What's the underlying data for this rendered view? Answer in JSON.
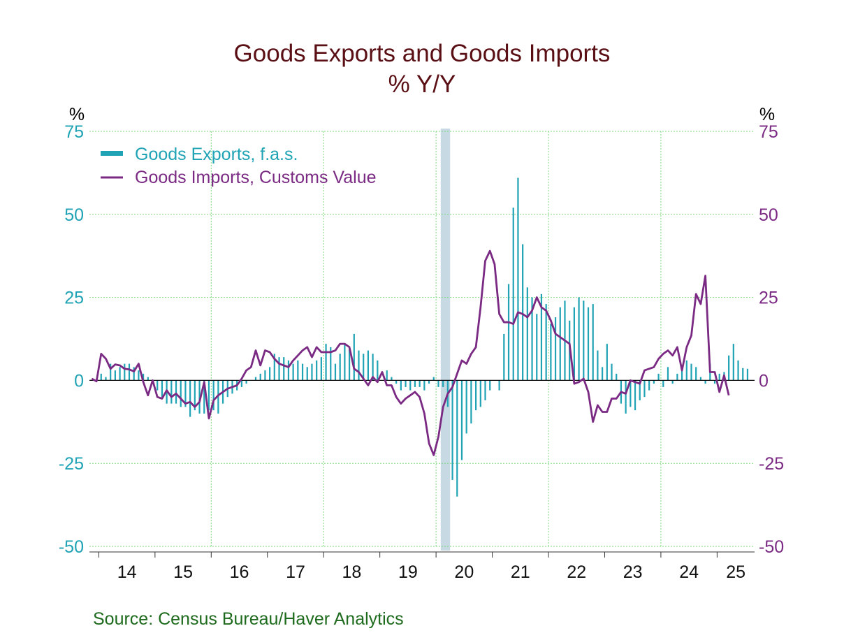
{
  "chart_data": {
    "type": "bar+line",
    "title": "Goods Exports and Goods Imports",
    "subtitle": "% Y/Y",
    "left_unit": "%",
    "right_unit": "%",
    "ylim": [
      -50,
      75
    ],
    "yticks": [
      "75",
      "50",
      "25",
      "0",
      "-25",
      "-50"
    ],
    "x_start": "2013-11",
    "x_end": "2025-08",
    "year_labels": [
      "14",
      "15",
      "16",
      "17",
      "18",
      "19",
      "20",
      "21",
      "22",
      "23",
      "24",
      "25"
    ],
    "recession": {
      "start": "2020-02",
      "end": "2020-04"
    },
    "grid": true,
    "legend_position": "top-left",
    "source": "Source:  Census Bureau/Haver Analytics",
    "colors": {
      "exports": "#1fa3b5",
      "imports": "#7b2a84",
      "title": "#5a0f14",
      "grid": "#7ed87e",
      "recession": "#c7d9e2",
      "source": "#1e6b1e"
    },
    "series": [
      {
        "name": "Goods Exports, f.a.s.",
        "kind": "bar",
        "start": "2014-01",
        "values": [
          2.0,
          1.0,
          5.0,
          3.0,
          4.0,
          5.0,
          5.0,
          4.0,
          3.0,
          2.0,
          1.0,
          0.0,
          -3.0,
          -5.0,
          -7.0,
          -7.0,
          -7.0,
          -8.0,
          -8.0,
          -11.0,
          -9.0,
          -10.0,
          -10.0,
          -9.0,
          -9.0,
          -10.0,
          -7.0,
          -5.0,
          -4.0,
          -3.0,
          -2.0,
          -1.0,
          0.0,
          1.0,
          2.0,
          3.0,
          4.0,
          8.0,
          7.0,
          7.0,
          6.0,
          5.0,
          6.0,
          5.0,
          4.0,
          5.0,
          6.0,
          7.0,
          11.0,
          10.0,
          5.0,
          8.0,
          11.0,
          10.0,
          14.0,
          9.0,
          8.0,
          9.0,
          8.0,
          6.0,
          0.0,
          3.0,
          1.0,
          -1.0,
          -3.0,
          -2.0,
          -3.0,
          -2.0,
          -2.0,
          -3.0,
          -1.0,
          1.0,
          -2.0,
          -2.0,
          -8.0,
          -30.0,
          -35.0,
          -24.0,
          -16.0,
          -13.0,
          -9.0,
          -8.0,
          -6.0,
          -3.0,
          0.0,
          -3.0,
          14.0,
          29.0,
          52.0,
          61.0,
          41.0,
          28.0,
          25.0,
          20.0,
          26.0,
          23.0,
          17.0,
          19.0,
          22.0,
          24.0,
          18.0,
          22.0,
          25.0,
          24.0,
          22.0,
          23.0,
          9.0,
          4.0,
          11.0,
          5.0,
          2.0,
          -7.0,
          -10.0,
          -8.0,
          -9.0,
          -6.0,
          -5.0,
          -3.0,
          -1.0,
          2.0,
          -2.0,
          4.0,
          -1.0,
          2.0,
          4.0,
          6.0,
          5.0,
          4.0,
          1.0,
          -1.0,
          5.0,
          -1.0,
          2.0,
          2.5,
          7.5,
          11.0,
          6.0,
          3.7,
          3.5
        ]
      },
      {
        "name": "Goods Imports, Customs Value",
        "kind": "line",
        "start": "2013-11",
        "values": [
          0.5,
          -0.3,
          8.0,
          6.5,
          3.5,
          4.8,
          4.5,
          3.5,
          3.3,
          2.7,
          5.0,
          -0.5,
          -4.5,
          0.0,
          -5.0,
          -5.5,
          -3.0,
          -5.0,
          -4.0,
          -5.5,
          -7.0,
          -6.5,
          -8.0,
          -6.5,
          -0.5,
          -11.5,
          -6.0,
          -4.5,
          -3.5,
          -2.5,
          -2.0,
          -1.5,
          0.5,
          3.0,
          4.0,
          9.0,
          4.5,
          9.0,
          8.5,
          6.5,
          5.0,
          4.5,
          4.0,
          6.0,
          7.5,
          9.0,
          10.0,
          7.0,
          10.0,
          8.5,
          8.5,
          8.5,
          9.0,
          11.0,
          11.0,
          10.0,
          3.5,
          2.5,
          0.5,
          -1.5,
          1.0,
          -0.5,
          2.5,
          -1.5,
          -1.5,
          -5.0,
          -7.0,
          -5.5,
          -4.5,
          -3.5,
          -5.0,
          -10.0,
          -19.0,
          -22.5,
          -17.0,
          -8.0,
          -4.0,
          -2.0,
          2.0,
          6.0,
          5.0,
          8.0,
          10.0,
          22.0,
          36.0,
          39.0,
          35.0,
          20.0,
          17.5,
          17.5,
          17.0,
          20.5,
          20.0,
          19.0,
          21.0,
          25.0,
          22.0,
          21.0,
          18.0,
          14.0,
          13.0,
          12.0,
          11.0,
          -1.0,
          -0.5,
          0.5,
          -3.5,
          -12.5,
          -7.5,
          -9.5,
          -9.5,
          -5.5,
          -5.5,
          -3.5,
          -4.0,
          0.0,
          -0.5,
          -1.0,
          3.0,
          3.5,
          4.0,
          6.5,
          8.0,
          9.0,
          7.5,
          10.0,
          3.0,
          10.0,
          13.5,
          26.0,
          23.0,
          31.5,
          2.5,
          2.5,
          -3.5,
          1.5,
          -4.5
        ]
      }
    ]
  }
}
